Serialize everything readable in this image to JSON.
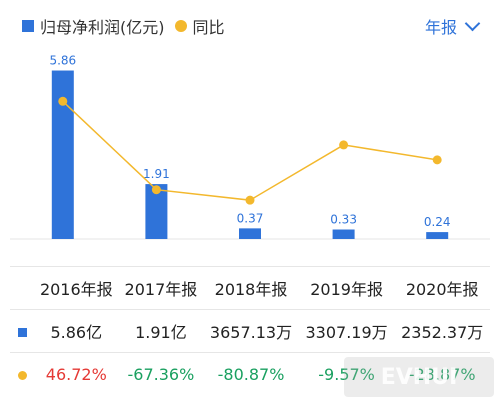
{
  "legend": {
    "series_bar_label": "归母净利润(亿元)",
    "series_line_label": "同比"
  },
  "period_selector": {
    "label": "年报"
  },
  "chart_data": {
    "type": "bar",
    "categories": [
      "2016年报",
      "2017年报",
      "2018年报",
      "2019年报",
      "2020年报"
    ],
    "series": [
      {
        "name": "归母净利润(亿元)",
        "type": "bar",
        "values": [
          5.86,
          1.91,
          0.37,
          0.33,
          0.24
        ],
        "data_labels": [
          "5.86",
          "1.91",
          "0.37",
          "0.33",
          "0.24"
        ]
      },
      {
        "name": "同比",
        "type": "line",
        "values": [
          46.72,
          -67.36,
          -80.87,
          -9.57,
          -28.87
        ]
      }
    ],
    "ylim": [
      0,
      6.4
    ],
    "line_ylim": [
      -100,
      100
    ],
    "grid": false,
    "colors": {
      "bar": "#2f73d9",
      "line": "#f3b82d"
    }
  },
  "table": {
    "headers": [
      "2016年报",
      "2017年报",
      "2018年报",
      "2019年报",
      "2020年报"
    ],
    "profit_row": [
      "5.86亿",
      "1.91亿",
      "3657.13万",
      "3307.19万",
      "2352.37万"
    ],
    "yoy_row": [
      "46.72%",
      "-67.36%",
      "-80.87%",
      "-9.57%",
      "-28.87%"
    ]
  },
  "watermark": {
    "text": "EVHUI"
  }
}
